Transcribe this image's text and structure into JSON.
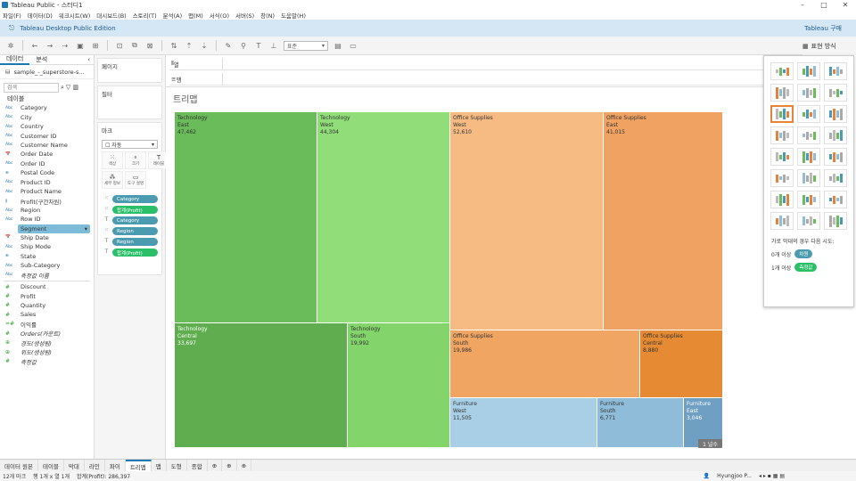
{
  "window": {
    "title": "Tableau Public - 스터디1"
  },
  "menu": [
    "파일(F)",
    "데이터(D)",
    "워크시트(W)",
    "대시보드(B)",
    "스토리(T)",
    "분석(A)",
    "맵(M)",
    "서식(O)",
    "서버(S)",
    "창(N)",
    "도움말(H)"
  ],
  "banner": {
    "text": "Tableau Desktop Public Edition",
    "right": "Tableau 구매"
  },
  "toolbar": {
    "fit": "표준"
  },
  "showme_label": "표현 방식",
  "left": {
    "tabs": [
      "데이터",
      "분석"
    ],
    "datasource": "sample_-_superstore-s...",
    "search_placeholder": "검색",
    "tables_label": "테이블",
    "dimensions": [
      {
        "name": "Category",
        "type": "Abc"
      },
      {
        "name": "City",
        "type": "Abc"
      },
      {
        "name": "Country",
        "type": "Abc"
      },
      {
        "name": "Customer ID",
        "type": "Abc"
      },
      {
        "name": "Customer Name",
        "type": "Abc"
      },
      {
        "name": "Order Date",
        "type": "📅"
      },
      {
        "name": "Order ID",
        "type": "Abc"
      },
      {
        "name": "Postal Code",
        "type": "⊕"
      },
      {
        "name": "Product ID",
        "type": "Abc"
      },
      {
        "name": "Product Name",
        "type": "Abc"
      },
      {
        "name": "Profit(구간차원)",
        "type": "⫼"
      },
      {
        "name": "Region",
        "type": "Abc"
      },
      {
        "name": "Row ID",
        "type": "Abc"
      },
      {
        "name": "Segment",
        "type": "Abc",
        "selected": true
      },
      {
        "name": "Ship Date",
        "type": "📅"
      },
      {
        "name": "Ship Mode",
        "type": "Abc"
      },
      {
        "name": "State",
        "type": "⊕"
      },
      {
        "name": "Sub-Category",
        "type": "Abc"
      },
      {
        "name": "측정값 이름",
        "type": "Abc",
        "italic": true
      }
    ],
    "measures": [
      {
        "name": "Discount",
        "type": "#"
      },
      {
        "name": "Profit",
        "type": "#"
      },
      {
        "name": "Quantity",
        "type": "#"
      },
      {
        "name": "Sales",
        "type": "#"
      },
      {
        "name": "이익률",
        "type": "=#"
      },
      {
        "name": "Orders(카운트)",
        "type": "#",
        "italic": true
      },
      {
        "name": "경도(생성됨)",
        "type": "⊕",
        "italic": true
      },
      {
        "name": "위도(생성됨)",
        "type": "⊕",
        "italic": true
      },
      {
        "name": "측정값",
        "type": "#",
        "italic": true
      }
    ]
  },
  "cards": {
    "pages": "페이지",
    "filters": "필터",
    "marks": "마크",
    "marks_type": "자동",
    "mark_buttons": [
      "색상",
      "크기",
      "레이블",
      "세부 정보",
      "도구 설명"
    ],
    "pills": [
      {
        "label": "Category",
        "kind": "dim",
        "icon": "color"
      },
      {
        "label": "합계(Profit)",
        "kind": "meas",
        "icon": "color"
      },
      {
        "label": "Category",
        "kind": "dim",
        "icon": "text"
      },
      {
        "label": "Region",
        "kind": "dim",
        "icon": "color"
      },
      {
        "label": "Region",
        "kind": "dim",
        "icon": "text"
      },
      {
        "label": "합계(Profit)",
        "kind": "meas",
        "icon": "text"
      }
    ]
  },
  "shelves": {
    "columns": "열",
    "rows": "행"
  },
  "view": {
    "title": "트리맵"
  },
  "chart_data": {
    "type": "treemap",
    "title": "트리맵",
    "measure": "합계(Profit)",
    "cells": [
      {
        "category": "Technology",
        "region": "East",
        "value": "47,462",
        "color": "#6abb5a",
        "dark": false
      },
      {
        "category": "Technology",
        "region": "West",
        "value": "44,304",
        "color": "#90dd7a",
        "dark": false
      },
      {
        "category": "Technology",
        "region": "Central",
        "value": "33,697",
        "color": "#5fad4e",
        "dark": true
      },
      {
        "category": "Technology",
        "region": "South",
        "value": "19,992",
        "color": "#82d46b",
        "dark": false
      },
      {
        "category": "Office Supplies",
        "region": "West",
        "value": "52,610",
        "color": "#f6bb82",
        "dark": false
      },
      {
        "category": "Office Supplies",
        "region": "East",
        "value": "41,015",
        "color": "#f0a263",
        "dark": false
      },
      {
        "category": "Office Supplies",
        "region": "South",
        "value": "19,986",
        "color": "#f0a562",
        "dark": false
      },
      {
        "category": "Office Supplies",
        "region": "Central",
        "value": "8,880",
        "color": "#e68a33",
        "dark": false
      },
      {
        "category": "Furniture",
        "region": "West",
        "value": "11,505",
        "color": "#a9cfe6",
        "dark": false
      },
      {
        "category": "Furniture",
        "region": "South",
        "value": "6,771",
        "color": "#8fbcd8",
        "dark": false
      },
      {
        "category": "Furniture",
        "region": "East",
        "value": "3,046",
        "color": "#6f9fc2",
        "dark": true
      }
    ],
    "badge": "1 널수"
  },
  "showme": {
    "hint": "가로 막대의 경우 다음 시도:",
    "row1_prefix": "0개 이상",
    "row1_pill": "차원",
    "row2_prefix": "1개 이상",
    "row2_pill": "측정값"
  },
  "bottom_tabs": [
    "데이터 원본",
    "테이블",
    "막대",
    "라인",
    "파이",
    "트리맵",
    "맵",
    "도형",
    "종합"
  ],
  "active_tab": "트리맵",
  "status": {
    "marks": "12개 마크",
    "rows": "행 1개 x 열 1개",
    "sum": "합계(Profit): 286,397",
    "user": "Hyungjoo P..."
  }
}
